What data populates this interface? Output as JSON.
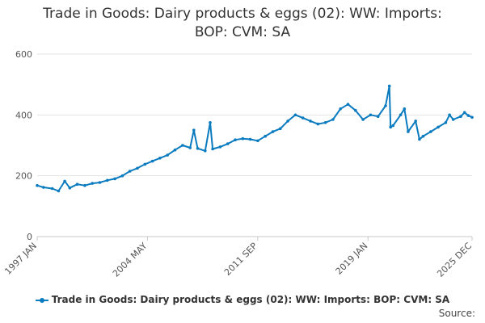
{
  "chart_data": {
    "type": "line",
    "title_lines": [
      "Trade in Goods: Dairy products & eggs (02): WW: Imports:",
      "BOP: CVM: SA"
    ],
    "xlabel": "",
    "ylabel": "",
    "ylim": [
      0,
      600
    ],
    "yticks": [
      "0",
      "200",
      "400",
      "600"
    ],
    "xlim": [
      "1997 JAN",
      "2025 DEC"
    ],
    "xticks": [
      "1997 JAN",
      "2004 MAY",
      "2011 SEP",
      "2019 JAN",
      "2025 DEC"
    ],
    "grid": "horizontal",
    "legend_position": "bottom",
    "series": [
      {
        "name": "Trade in Goods: Dairy products & eggs (02): WW: Imports: BOP: CVM: SA",
        "color": "#0b7bbf",
        "points": [
          [
            "1997 JAN",
            168
          ],
          [
            "1997 JUN",
            162
          ],
          [
            "1998 JAN",
            158
          ],
          [
            "1998 JUN",
            150
          ],
          [
            "1998 NOV",
            182
          ],
          [
            "1999 MAR",
            160
          ],
          [
            "1999 SEP",
            172
          ],
          [
            "2000 MAR",
            168
          ],
          [
            "2000 SEP",
            175
          ],
          [
            "2001 MAR",
            178
          ],
          [
            "2001 SEP",
            185
          ],
          [
            "2002 MAR",
            190
          ],
          [
            "2002 SEP",
            200
          ],
          [
            "2003 MAR",
            215
          ],
          [
            "2003 SEP",
            225
          ],
          [
            "2004 MAR",
            238
          ],
          [
            "2004 SEP",
            248
          ],
          [
            "2005 MAR",
            258
          ],
          [
            "2005 SEP",
            268
          ],
          [
            "2006 MAR",
            285
          ],
          [
            "2006 SEP",
            300
          ],
          [
            "2007 MAR",
            292
          ],
          [
            "2007 JUN",
            350
          ],
          [
            "2007 SEP",
            290
          ],
          [
            "2008 MAR",
            282
          ],
          [
            "2008 JUL",
            375
          ],
          [
            "2008 SEP",
            288
          ],
          [
            "2009 MAR",
            295
          ],
          [
            "2009 SEP",
            305
          ],
          [
            "2010 MAR",
            318
          ],
          [
            "2010 SEP",
            322
          ],
          [
            "2011 MAR",
            320
          ],
          [
            "2011 SEP",
            315
          ],
          [
            "2012 MAR",
            330
          ],
          [
            "2012 SEP",
            345
          ],
          [
            "2013 MAR",
            355
          ],
          [
            "2013 SEP",
            380
          ],
          [
            "2014 MAR",
            400
          ],
          [
            "2014 SEP",
            390
          ],
          [
            "2015 MAR",
            380
          ],
          [
            "2015 SEP",
            370
          ],
          [
            "2016 MAR",
            375
          ],
          [
            "2016 SEP",
            385
          ],
          [
            "2017 MAR",
            420
          ],
          [
            "2017 SEP",
            435
          ],
          [
            "2018 MAR",
            415
          ],
          [
            "2018 SEP",
            385
          ],
          [
            "2019 MAR",
            400
          ],
          [
            "2019 SEP",
            395
          ],
          [
            "2020 MAR",
            430
          ],
          [
            "2020 JUN",
            495
          ],
          [
            "2020 JUL",
            360
          ],
          [
            "2020 SEP",
            365
          ],
          [
            "2021 MAR",
            400
          ],
          [
            "2021 JUN",
            420
          ],
          [
            "2021 SEP",
            345
          ],
          [
            "2022 MAR",
            380
          ],
          [
            "2022 JUN",
            320
          ],
          [
            "2022 SEP",
            330
          ],
          [
            "2023 MAR",
            345
          ],
          [
            "2023 SEP",
            360
          ],
          [
            "2024 MAR",
            375
          ],
          [
            "2024 JUN",
            400
          ],
          [
            "2024 SEP",
            385
          ],
          [
            "2025 MAR",
            395
          ],
          [
            "2025 JUN",
            408
          ],
          [
            "2025 SEP",
            398
          ],
          [
            "2025 DEC",
            392
          ]
        ]
      }
    ]
  },
  "legend_label": "Trade in Goods: Dairy products & eggs (02): WW: Imports: BOP: CVM: SA",
  "source_label": "Source:"
}
